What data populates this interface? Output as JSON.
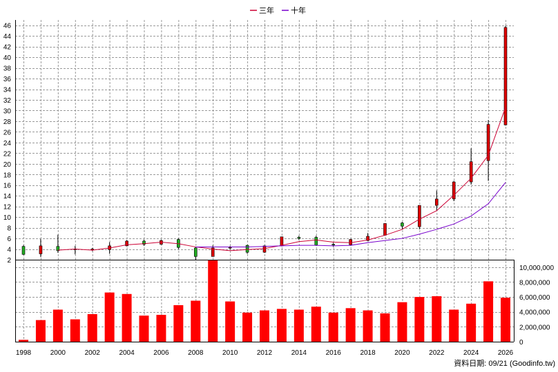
{
  "legend": [
    {
      "label": "三年",
      "color": "#cc0033"
    },
    {
      "label": "十年",
      "color": "#7700cc"
    }
  ],
  "footer": {
    "source": "資料日期: 09/21  (Goodinfo.tw)"
  },
  "colors": {
    "up": "#dd0000",
    "down": "#22aa22",
    "volume": "#ff0000",
    "grid": "#999999"
  },
  "chart_data": [
    {
      "type": "candlestick",
      "title": "",
      "ylim": [
        2,
        47
      ],
      "y_ticks": [
        2,
        4,
        6,
        8,
        10,
        12,
        14,
        16,
        18,
        20,
        22,
        24,
        26,
        28,
        30,
        32,
        34,
        36,
        38,
        40,
        42,
        44,
        46
      ],
      "x_range": [
        1998,
        2026
      ],
      "x_ticks": [
        "1998",
        "2000",
        "2002",
        "2004",
        "2006",
        "2008",
        "2010",
        "2012",
        "2014",
        "2016",
        "2018",
        "2020",
        "2022",
        "2024",
        "2026"
      ],
      "grid": true,
      "legend_position": "top-center",
      "candles": [
        {
          "year": 1998,
          "open": 4.5,
          "high": 4.7,
          "low": 2.9,
          "close": 3.0
        },
        {
          "year": 1999,
          "open": 3.1,
          "high": 5.9,
          "low": 2.5,
          "close": 4.6
        },
        {
          "year": 2000,
          "open": 4.5,
          "high": 6.7,
          "low": 3.3,
          "close": 3.7
        },
        {
          "year": 2001,
          "open": 3.9,
          "high": 4.6,
          "low": 3.0,
          "close": 4.0
        },
        {
          "year": 2002,
          "open": 3.8,
          "high": 4.2,
          "low": 3.6,
          "close": 4.0
        },
        {
          "year": 2003,
          "open": 3.9,
          "high": 5.3,
          "low": 3.1,
          "close": 4.6
        },
        {
          "year": 2004,
          "open": 4.6,
          "high": 5.7,
          "low": 4.5,
          "close": 5.5
        },
        {
          "year": 2005,
          "open": 5.5,
          "high": 5.8,
          "low": 4.6,
          "close": 4.9
        },
        {
          "year": 2006,
          "open": 4.9,
          "high": 5.8,
          "low": 4.8,
          "close": 5.6
        },
        {
          "year": 2007,
          "open": 5.8,
          "high": 6.0,
          "low": 4.0,
          "close": 4.3
        },
        {
          "year": 2008,
          "open": 4.2,
          "high": 4.4,
          "low": 2.0,
          "close": 2.6
        },
        {
          "year": 2009,
          "open": 2.6,
          "high": 4.7,
          "low": 2.6,
          "close": 4.2
        },
        {
          "year": 2010,
          "open": 4.2,
          "high": 4.6,
          "low": 4.0,
          "close": 4.3
        },
        {
          "year": 2011,
          "open": 4.7,
          "high": 4.8,
          "low": 3.1,
          "close": 3.4
        },
        {
          "year": 2012,
          "open": 3.4,
          "high": 4.7,
          "low": 3.3,
          "close": 4.6
        },
        {
          "year": 2013,
          "open": 4.6,
          "high": 6.3,
          "low": 4.5,
          "close": 6.3
        },
        {
          "year": 2014,
          "open": 6.2,
          "high": 6.5,
          "low": 5.7,
          "close": 6.0
        },
        {
          "year": 2015,
          "open": 6.2,
          "high": 6.5,
          "low": 4.6,
          "close": 4.7
        },
        {
          "year": 2016,
          "open": 4.9,
          "high": 5.2,
          "low": 4.4,
          "close": 4.8
        },
        {
          "year": 2017,
          "open": 4.8,
          "high": 5.9,
          "low": 4.7,
          "close": 5.8
        },
        {
          "year": 2018,
          "open": 5.6,
          "high": 7.0,
          "low": 5.5,
          "close": 6.4
        },
        {
          "year": 2019,
          "open": 6.6,
          "high": 8.8,
          "low": 6.5,
          "close": 8.8
        },
        {
          "year": 2020,
          "open": 8.9,
          "high": 9.1,
          "low": 7.7,
          "close": 8.3
        },
        {
          "year": 2021,
          "open": 8.2,
          "high": 12.2,
          "low": 7.7,
          "close": 12.2
        },
        {
          "year": 2022,
          "open": 12.2,
          "high": 15.0,
          "low": 11.3,
          "close": 13.4
        },
        {
          "year": 2023,
          "open": 13.4,
          "high": 16.8,
          "low": 13.0,
          "close": 16.6
        },
        {
          "year": 2024,
          "open": 16.6,
          "high": 22.9,
          "low": 16.1,
          "close": 20.4
        },
        {
          "year": 2025,
          "open": 20.6,
          "high": 28.2,
          "low": 16.8,
          "close": 27.4
        },
        {
          "year": 2026,
          "open": 27.3,
          "high": 45.9,
          "low": 27.2,
          "close": 45.6
        }
      ],
      "series": [
        {
          "name": "三年",
          "type": "line",
          "x": [
            2000,
            2001,
            2002,
            2003,
            2004,
            2005,
            2006,
            2007,
            2008,
            2009,
            2010,
            2011,
            2012,
            2013,
            2014,
            2015,
            2016,
            2017,
            2018,
            2019,
            2020,
            2021,
            2022,
            2023,
            2024,
            2025,
            2026
          ],
          "values": [
            3.8,
            4.0,
            3.8,
            4.2,
            4.8,
            5.0,
            5.3,
            5.0,
            4.4,
            4.0,
            3.7,
            3.9,
            4.1,
            4.7,
            5.4,
            5.7,
            5.3,
            5.2,
            5.7,
            6.6,
            7.7,
            9.6,
            11.2,
            14.1,
            17.3,
            21.6,
            30.6
          ]
        },
        {
          "name": "十年",
          "type": "line",
          "x": [
            2008,
            2009,
            2010,
            2011,
            2012,
            2013,
            2014,
            2015,
            2016,
            2017,
            2018,
            2019,
            2020,
            2021,
            2022,
            2023,
            2024,
            2025,
            2026
          ],
          "values": [
            4.4,
            4.4,
            4.4,
            4.4,
            4.5,
            4.6,
            4.7,
            4.7,
            4.6,
            4.7,
            5.2,
            5.6,
            6.0,
            6.8,
            7.7,
            8.7,
            10.2,
            12.5,
            16.5
          ]
        }
      ]
    },
    {
      "type": "bar",
      "title": "",
      "ylim": [
        0,
        11000000
      ],
      "y_ticks": [
        "0",
        "2,000,000",
        "4,000,000",
        "6,000,000",
        "8,000,000",
        "10,000,000"
      ],
      "grid": true,
      "categories": [
        1998,
        1999,
        2000,
        2001,
        2002,
        2003,
        2004,
        2005,
        2006,
        2007,
        2008,
        2009,
        2010,
        2011,
        2012,
        2013,
        2014,
        2015,
        2016,
        2017,
        2018,
        2019,
        2020,
        2021,
        2022,
        2023,
        2024,
        2025,
        2026
      ],
      "values": [
        250000,
        2900000,
        4300000,
        3000000,
        3700000,
        6600000,
        6400000,
        3500000,
        3600000,
        4900000,
        5500000,
        10900000,
        5400000,
        3900000,
        4200000,
        4400000,
        4300000,
        4700000,
        3900000,
        4500000,
        4200000,
        3800000,
        5300000,
        6000000,
        6100000,
        4300000,
        5100000,
        8100000,
        5900000
      ]
    }
  ]
}
